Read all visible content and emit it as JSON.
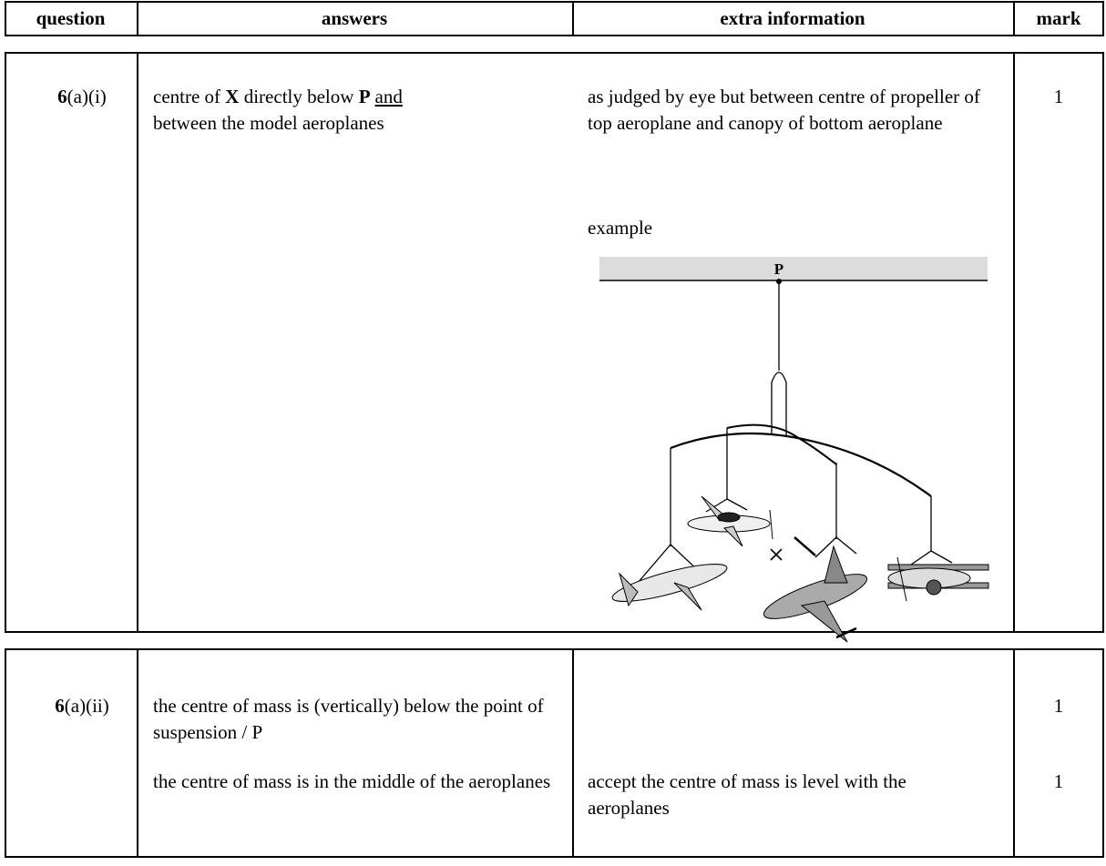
{
  "header": {
    "columns": [
      "question",
      "answers",
      "extra information",
      "mark"
    ]
  },
  "rows": [
    {
      "question": {
        "number": "6",
        "part": "(a)(i)"
      },
      "answer": [
        "centre of ",
        "X",
        " directly below ",
        "P",
        "and",
        "between the model aeroplanes"
      ],
      "extra": [
        "as judged by eye but between centre of  propeller of top aeroplane and canopy of bottom aeroplane",
        "example"
      ],
      "figure": {
        "label": "P"
      },
      "mark": 1
    },
    {
      "question": {
        "number": "6",
        "part": "(a)(ii)"
      },
      "lines": [
        {
          "answer": "the centre of mass is (vertically) below the point of suspension / P",
          "mark": 1
        },
        {
          "answer": "the centre of mass is in the middle of the aeroplanes",
          "extra": "accept the centre of mass is level with the aeroplanes",
          "mark": 1
        }
      ]
    }
  ]
}
